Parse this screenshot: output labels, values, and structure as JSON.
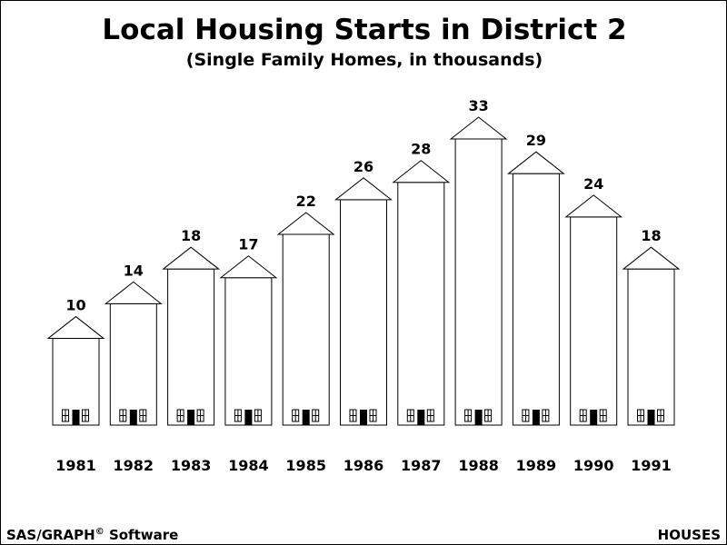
{
  "chart_data": {
    "type": "bar",
    "title": "Local Housing Starts in District 2",
    "subtitle": "(Single Family Homes, in thousands)",
    "xlabel": "",
    "ylabel": "",
    "categories": [
      "1981",
      "1982",
      "1983",
      "1984",
      "1985",
      "1986",
      "1987",
      "1988",
      "1989",
      "1990",
      "1991"
    ],
    "values": [
      10,
      14,
      18,
      17,
      22,
      26,
      28,
      33,
      29,
      24,
      18
    ],
    "value_labels": [
      "10",
      "14",
      "18",
      "17",
      "22",
      "26",
      "28",
      "33",
      "29",
      "24",
      "18"
    ],
    "ylim": [
      0,
      33
    ],
    "grid": false,
    "legend": "none",
    "mark_style": "house",
    "colors": {
      "stroke": "#000000",
      "fill": "#ffffff",
      "door": "#000000"
    }
  },
  "footer": {
    "left_text": "SAS/GRAPH",
    "left_symbol": "©",
    "left_suffix": " Software",
    "right_text": "HOUSES"
  }
}
